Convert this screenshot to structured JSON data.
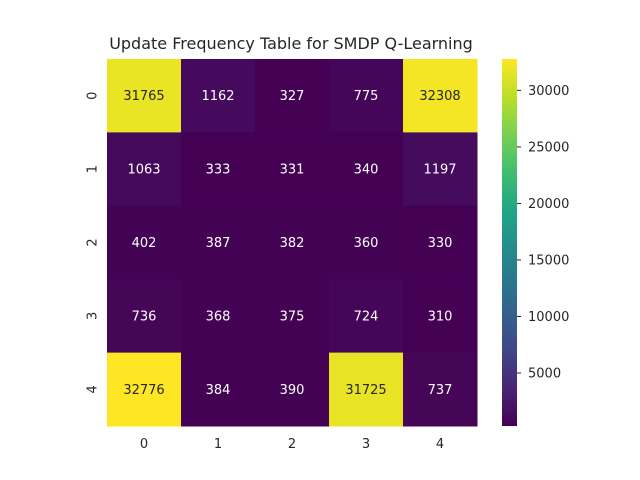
{
  "chart_data": {
    "type": "heatmap",
    "title": "Update Frequency Table for SMDP Q-Learning",
    "x_labels": [
      "0",
      "1",
      "2",
      "3",
      "4"
    ],
    "y_labels": [
      "0",
      "1",
      "2",
      "3",
      "4"
    ],
    "values": [
      [
        31765,
        1162,
        327,
        775,
        32308
      ],
      [
        1063,
        333,
        331,
        340,
        1197
      ],
      [
        402,
        387,
        382,
        360,
        330
      ],
      [
        736,
        368,
        375,
        724,
        310
      ],
      [
        32776,
        384,
        390,
        31725,
        737
      ]
    ],
    "colormap": "viridis",
    "colorbar": {
      "ticks": [
        5000,
        10000,
        15000,
        20000,
        25000,
        30000
      ],
      "tick_labels": [
        "5000",
        "10000",
        "15000",
        "20000",
        "25000",
        "30000"
      ]
    }
  }
}
